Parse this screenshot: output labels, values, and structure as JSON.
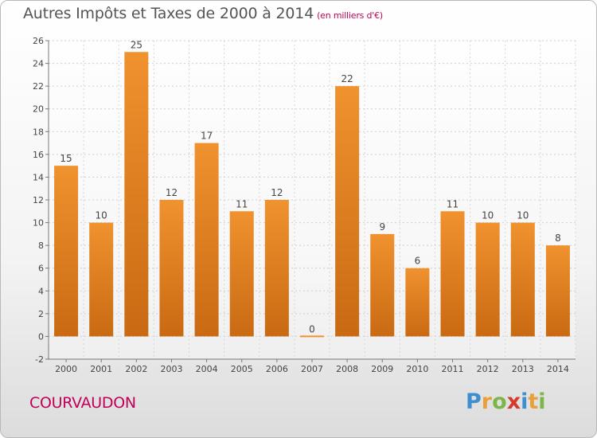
{
  "header": {
    "title": "Autres Impôts et Taxes de 2000 à 2014",
    "unit": "(en milliers d'€)"
  },
  "footer": {
    "city": "COURVAUDON",
    "brand_letters": [
      "P",
      "r",
      "o",
      "x",
      "i",
      "t",
      "i"
    ],
    "brand_colors": [
      "#3e8ed0",
      "#e8a13a",
      "#7ab648",
      "#d23c2e",
      "#3e8ed0",
      "#e8a13a",
      "#7ab648"
    ]
  },
  "chart_data": {
    "type": "bar",
    "categories": [
      "2000",
      "2001",
      "2002",
      "2003",
      "2004",
      "2005",
      "2006",
      "2007",
      "2008",
      "2009",
      "2010",
      "2011",
      "2012",
      "2013",
      "2014"
    ],
    "values": [
      15,
      10,
      25,
      12,
      17,
      11,
      12,
      0,
      22,
      9,
      6,
      11,
      10,
      10,
      8
    ],
    "data_labels": [
      "15",
      "10",
      "25",
      "12",
      "17",
      "11",
      "12",
      "0",
      "22",
      "9",
      "6",
      "11",
      "10",
      "10",
      "8"
    ],
    "ylim": [
      -2,
      26
    ],
    "yticks": [
      -2,
      0,
      2,
      4,
      6,
      8,
      10,
      12,
      14,
      16,
      18,
      20,
      22,
      24,
      26
    ],
    "grid": true,
    "bar_color": "#f0922e",
    "bar_color_dark": "#c96a13"
  }
}
